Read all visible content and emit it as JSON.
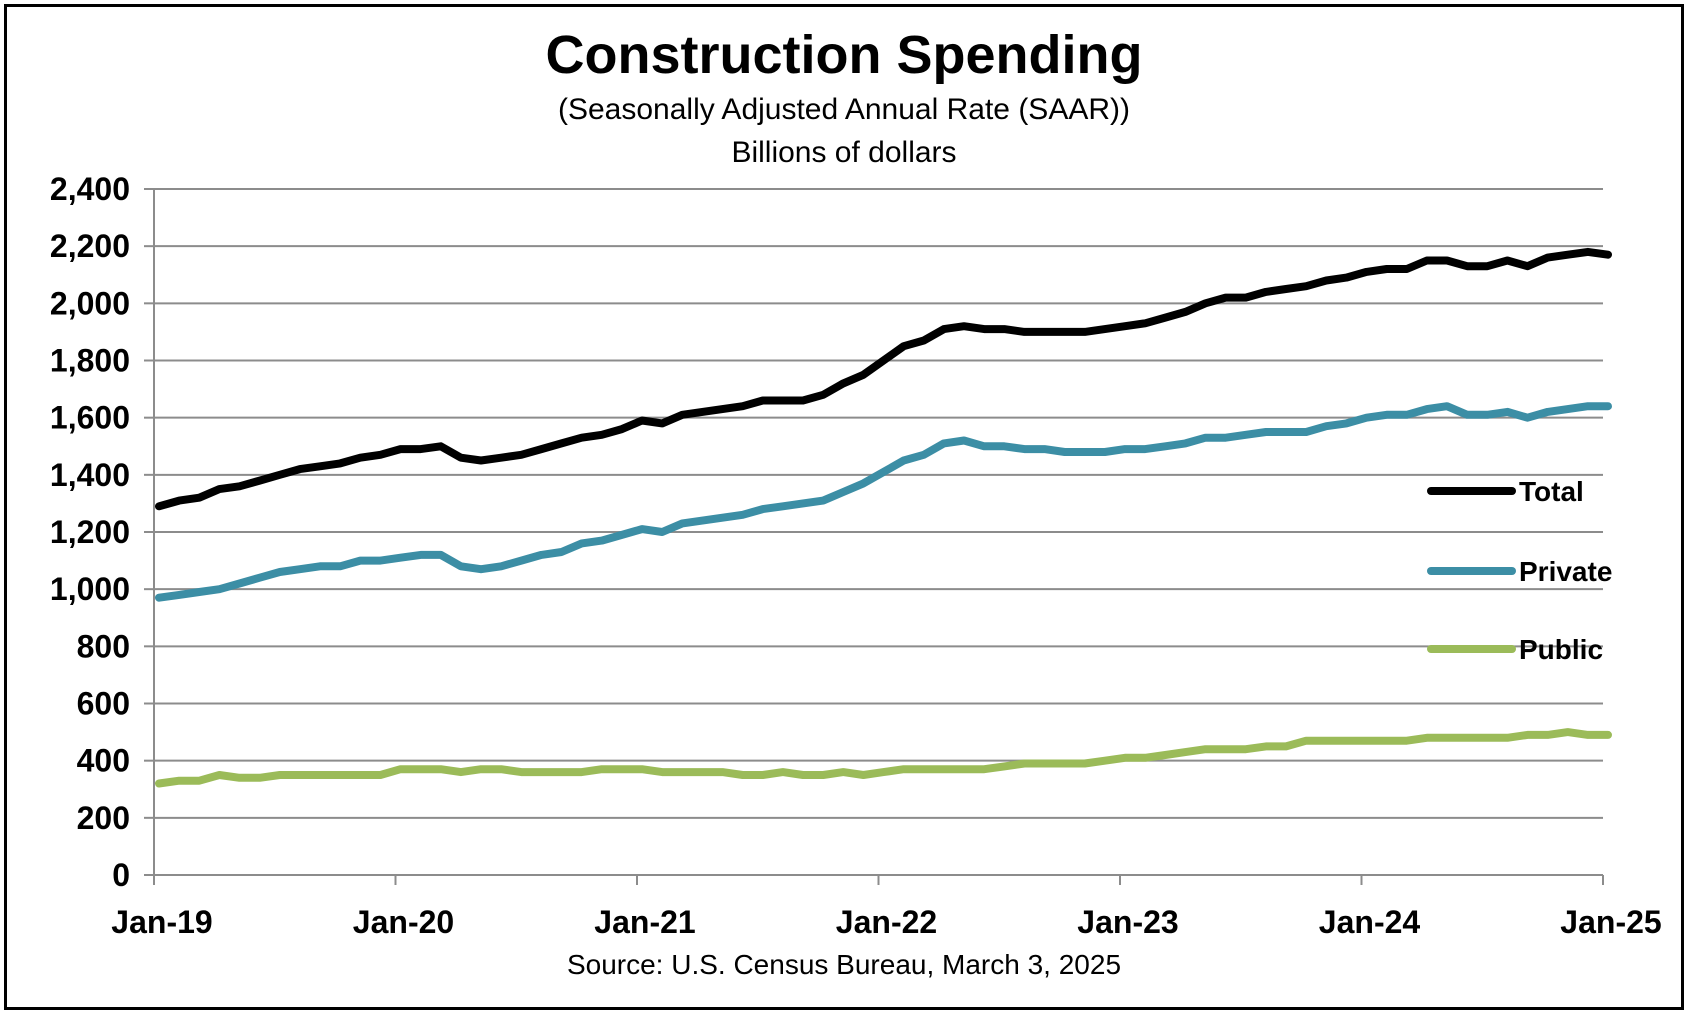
{
  "chart_data": {
    "type": "line",
    "title": "Construction  Spending",
    "subtitle_lines": [
      "(Seasonally Adjusted Annual Rate (SAAR))",
      "Billions of dollars"
    ],
    "source": "Source: U.S. Census Bureau, March 3, 2025",
    "ylim": [
      0,
      2400
    ],
    "y_ticks": [
      0,
      200,
      400,
      600,
      800,
      1000,
      1200,
      1400,
      1600,
      1800,
      2000,
      2200,
      2400
    ],
    "y_tick_labels": [
      "0",
      "200",
      "400",
      "600",
      "800",
      "1,000",
      "1,200",
      "1,400",
      "1,600",
      "1,800",
      "2,000",
      "2,200",
      "2,400"
    ],
    "x_tick_labels": [
      "Jan-19",
      "Jan-20",
      "Jan-21",
      "Jan-22",
      "Jan-23",
      "Jan-24",
      "Jan-25"
    ],
    "x_start": "Jan-19",
    "x_end": "Jan-25",
    "grid": true,
    "legend_position": "right",
    "series": [
      {
        "name": "Total",
        "color": "#000000",
        "values": [
          1290,
          1310,
          1320,
          1350,
          1360,
          1380,
          1400,
          1420,
          1430,
          1440,
          1460,
          1470,
          1490,
          1490,
          1500,
          1460,
          1450,
          1460,
          1470,
          1490,
          1510,
          1530,
          1540,
          1560,
          1590,
          1580,
          1610,
          1620,
          1630,
          1640,
          1660,
          1660,
          1660,
          1680,
          1720,
          1750,
          1800,
          1850,
          1870,
          1910,
          1920,
          1910,
          1910,
          1900,
          1900,
          1900,
          1900,
          1910,
          1920,
          1930,
          1950,
          1970,
          2000,
          2020,
          2020,
          2040,
          2050,
          2060,
          2080,
          2090,
          2110,
          2120,
          2120,
          2150,
          2150,
          2130,
          2130,
          2150,
          2130,
          2160,
          2170,
          2180,
          2170
        ]
      },
      {
        "name": "Private",
        "color": "#3C8EA5",
        "values": [
          970,
          980,
          990,
          1000,
          1020,
          1040,
          1060,
          1070,
          1080,
          1080,
          1100,
          1100,
          1110,
          1120,
          1120,
          1080,
          1070,
          1080,
          1100,
          1120,
          1130,
          1160,
          1170,
          1190,
          1210,
          1200,
          1230,
          1240,
          1250,
          1260,
          1280,
          1290,
          1300,
          1310,
          1340,
          1370,
          1410,
          1450,
          1470,
          1510,
          1520,
          1500,
          1500,
          1490,
          1490,
          1480,
          1480,
          1480,
          1490,
          1490,
          1500,
          1510,
          1530,
          1530,
          1540,
          1550,
          1550,
          1550,
          1570,
          1580,
          1600,
          1610,
          1610,
          1630,
          1640,
          1610,
          1610,
          1620,
          1600,
          1620,
          1630,
          1640,
          1640
        ]
      },
      {
        "name": "Public",
        "color": "#9BBB59",
        "values": [
          320,
          330,
          330,
          350,
          340,
          340,
          350,
          350,
          350,
          350,
          350,
          350,
          370,
          370,
          370,
          360,
          370,
          370,
          360,
          360,
          360,
          360,
          370,
          370,
          370,
          360,
          360,
          360,
          360,
          350,
          350,
          360,
          350,
          350,
          360,
          350,
          360,
          370,
          370,
          370,
          370,
          370,
          380,
          390,
          390,
          390,
          390,
          400,
          410,
          410,
          420,
          430,
          440,
          440,
          440,
          450,
          450,
          470,
          470,
          470,
          470,
          470,
          470,
          480,
          480,
          480,
          480,
          480,
          490,
          490,
          500,
          490,
          490
        ]
      }
    ]
  }
}
